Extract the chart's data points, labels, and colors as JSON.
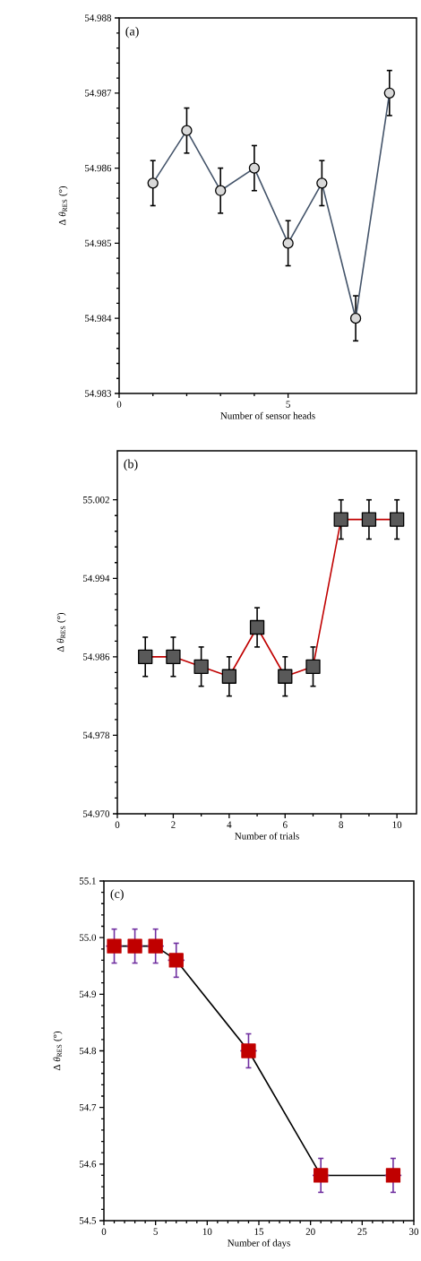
{
  "chart_data": [
    {
      "type": "line",
      "xlabel": "Number of sensor heads",
      "ylabel": "Δ *θ*$_{RES}$ (°)",
      "annotations": [
        "(a)"
      ],
      "x": [
        1,
        2,
        3,
        4,
        5,
        6,
        7,
        8
      ],
      "values": [
        54.9858,
        54.9865,
        54.9857,
        54.986,
        54.985,
        54.9858,
        54.984,
        54.987
      ],
      "errors": [
        0.0003,
        0.0003,
        0.0003,
        0.0003,
        0.0003,
        0.0003,
        0.0003,
        0.0003
      ],
      "color": "#44546a",
      "marker": "circle",
      "xlim": [
        0,
        8.8
      ],
      "ylim": [
        54.983,
        54.988
      ],
      "xticks": [
        0,
        5
      ],
      "yticks": [
        54.983,
        54.984,
        54.985,
        54.986,
        54.987,
        54.988
      ]
    },
    {
      "type": "line",
      "xlabel": "Number of trials",
      "ylabel": "Δ *θ*$_{RES}$ (°)",
      "annotations": [
        "(b)"
      ],
      "x": [
        1,
        2,
        3,
        4,
        5,
        6,
        7,
        8,
        9,
        10
      ],
      "values": [
        54.986,
        54.986,
        54.985,
        54.984,
        54.989,
        54.984,
        54.985,
        55.0,
        55.0,
        55.0
      ],
      "errors": [
        0.002,
        0.002,
        0.002,
        0.002,
        0.002,
        0.002,
        0.002,
        0.002,
        0.002,
        0.002
      ],
      "color": "#c00000",
      "marker": "square",
      "xlim": [
        0,
        10.7
      ],
      "ylim": [
        54.97,
        55.007
      ],
      "xticks": [
        0,
        2,
        4,
        6,
        8,
        10
      ],
      "yticks": [
        {
          "value": 54.97,
          "label": "54.970"
        },
        54.978,
        54.986,
        54.994,
        55.002
      ]
    },
    {
      "type": "line",
      "xlabel": "Number of days",
      "ylabel": "Δ *θ*$_{RES}$ (°)",
      "annotations": [
        "(c)"
      ],
      "x": [
        1,
        3,
        5,
        7,
        14,
        21,
        28
      ],
      "values": [
        54.985,
        54.985,
        54.985,
        54.96,
        54.8,
        54.58,
        54.58
      ],
      "errors": [
        0.03,
        0.03,
        0.03,
        0.03,
        0.03,
        0.03,
        0.03
      ],
      "xerrors": [
        0.8,
        0.8,
        0.8,
        0.8,
        0.8,
        0.8,
        0.8
      ],
      "color": "#000000",
      "marker": "square",
      "xlim": [
        0,
        30
      ],
      "ylim": [
        54.5,
        55.1
      ],
      "xticks": [
        0,
        5,
        10,
        15,
        20,
        25,
        30
      ],
      "yticks": [
        54.5,
        54.6,
        54.7,
        54.8,
        54.9,
        {
          "value": 55,
          "label": "55.0"
        },
        55.1
      ]
    }
  ]
}
